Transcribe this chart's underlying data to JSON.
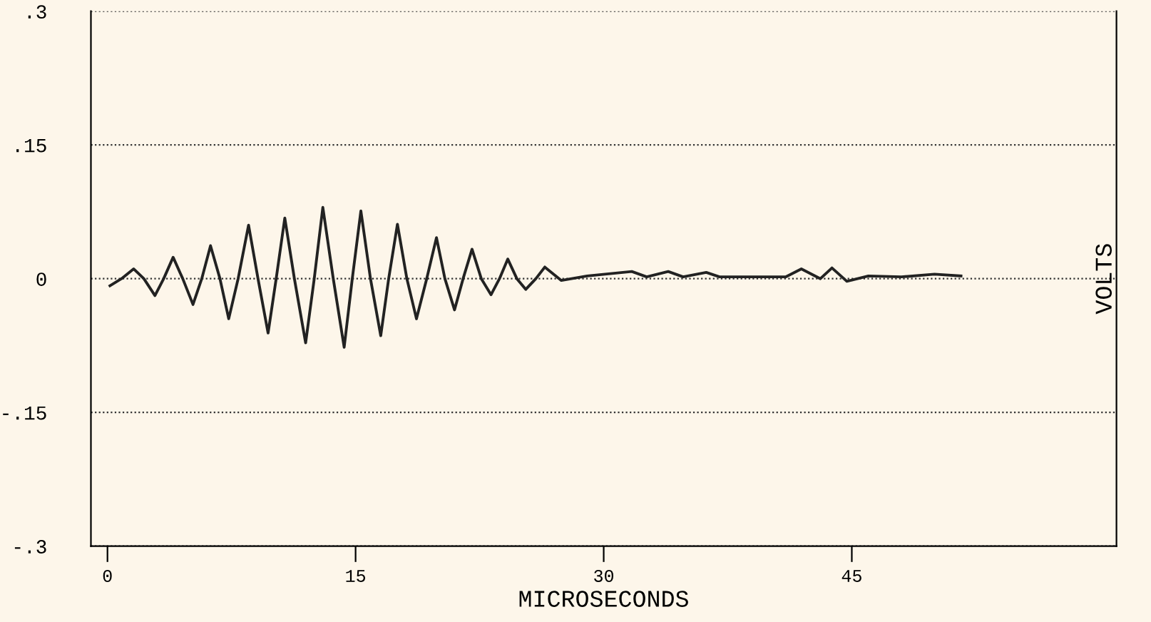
{
  "chart_data": {
    "type": "line",
    "xlabel": "MICROSECONDS",
    "y2label": "VOLTS",
    "xlim": [
      -1,
      61
    ],
    "xticks": [
      0,
      15,
      30,
      45
    ],
    "ylim": [
      -0.3,
      0.3
    ],
    "yticks": [
      {
        "value": -0.3,
        "label": "-.3"
      },
      {
        "value": -0.15,
        "label": "-.15"
      },
      0,
      {
        "value": 0.15,
        "label": ".15"
      },
      {
        "value": 0.3,
        "label": ".3"
      }
    ],
    "grid": "y",
    "marker": "none",
    "line_style": "solid",
    "series": [
      {
        "color": "#222222",
        "x": [
          0.15,
          0.85,
          1.58,
          2.2,
          2.87,
          3.4,
          3.97,
          4.55,
          5.17,
          5.7,
          6.23,
          6.8,
          7.33,
          7.9,
          8.53,
          9.1,
          9.71,
          10.2,
          10.72,
          11.3,
          11.98,
          12.5,
          13.02,
          13.65,
          14.31,
          14.8,
          15.32,
          15.9,
          16.52,
          17.0,
          17.53,
          18.1,
          18.68,
          19.3,
          19.89,
          20.4,
          20.98,
          21.5,
          22.04,
          22.6,
          23.19,
          23.7,
          24.2,
          24.75,
          25.29,
          25.9,
          26.44,
          27.44,
          29,
          31.7,
          32.6,
          33.9,
          34.8,
          36.2,
          37,
          41,
          41.95,
          43.1,
          43.8,
          44.7,
          46,
          48,
          50,
          51.6
        ],
        "values": [
          -0.008,
          0,
          0.011,
          0,
          -0.019,
          0,
          0.024,
          0,
          -0.029,
          0,
          0.037,
          0,
          -0.045,
          0,
          0.06,
          0,
          -0.061,
          0,
          0.068,
          0,
          -0.072,
          0,
          0.08,
          0,
          -0.077,
          0,
          0.076,
          0,
          -0.064,
          0,
          0.061,
          0,
          -0.045,
          0,
          0.046,
          0,
          -0.035,
          0,
          0.033,
          0,
          -0.018,
          0,
          0.022,
          0,
          -0.012,
          0,
          0.013,
          -0.002,
          0.003,
          0.008,
          0.002,
          0.008,
          0.002,
          0.007,
          0.002,
          0.002,
          0.011,
          0,
          0.012,
          -0.003,
          0.003,
          0.002,
          0.005,
          0.003
        ]
      }
    ]
  }
}
